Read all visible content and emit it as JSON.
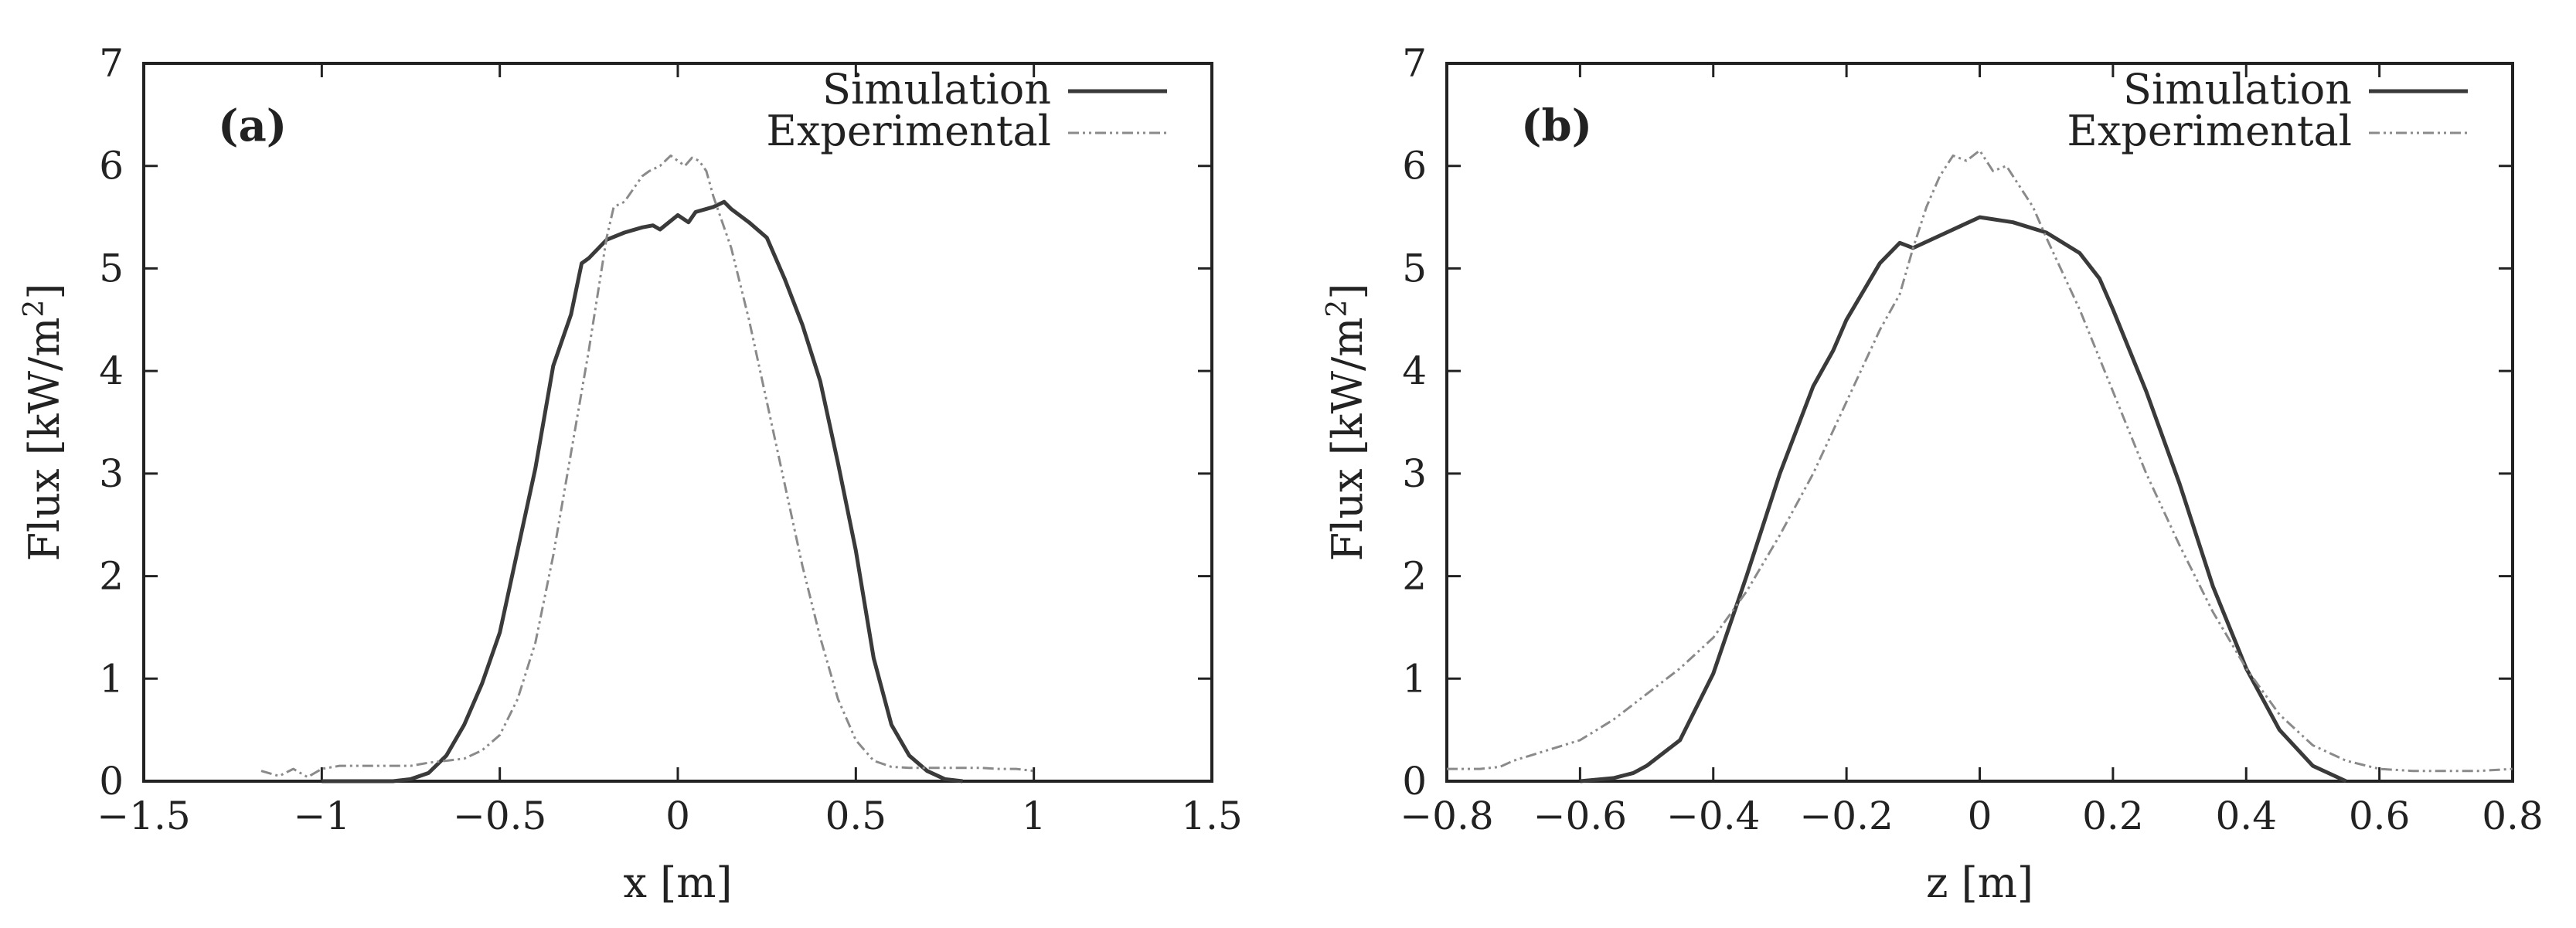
{
  "colors": {
    "simulation": "#3a3a3a",
    "experimental": "#8a8a8a",
    "axis": "#222222"
  },
  "chart_data": [
    {
      "type": "line",
      "panel_label": "(a)",
      "xlabel": "x [m]",
      "ylabel": "Flux [kW/m",
      "ylabel_sup": "2",
      "ylabel_end": "]",
      "xlim": [
        -1.5,
        1.5
      ],
      "ylim": [
        0,
        7
      ],
      "xticks": [
        -1.5,
        -1,
        -0.5,
        0,
        0.5,
        1,
        1.5
      ],
      "xtick_labels": [
        "−1.5",
        "−1",
        "−0.5",
        "0",
        "0.5",
        "1",
        "1.5"
      ],
      "yticks": [
        0,
        1,
        2,
        3,
        4,
        5,
        6,
        7
      ],
      "ytick_labels": [
        "0",
        "1",
        "2",
        "3",
        "4",
        "5",
        "6",
        "7"
      ],
      "legend_position": "top-right",
      "series": [
        {
          "name": "Simulation",
          "style": "solid",
          "x": [
            -1.0,
            -0.8,
            -0.75,
            -0.7,
            -0.65,
            -0.6,
            -0.55,
            -0.5,
            -0.45,
            -0.4,
            -0.35,
            -0.3,
            -0.27,
            -0.25,
            -0.2,
            -0.15,
            -0.1,
            -0.07,
            -0.05,
            0.0,
            0.03,
            0.05,
            0.1,
            0.13,
            0.15,
            0.2,
            0.25,
            0.3,
            0.35,
            0.4,
            0.45,
            0.5,
            0.55,
            0.6,
            0.65,
            0.7,
            0.75,
            0.8
          ],
          "values": [
            0,
            0.0,
            0.02,
            0.08,
            0.25,
            0.55,
            0.95,
            1.45,
            2.25,
            3.05,
            4.05,
            4.55,
            5.05,
            5.1,
            5.28,
            5.35,
            5.4,
            5.42,
            5.38,
            5.52,
            5.45,
            5.55,
            5.6,
            5.65,
            5.58,
            5.45,
            5.3,
            4.9,
            4.45,
            3.9,
            3.1,
            2.25,
            1.2,
            0.55,
            0.25,
            0.1,
            0.02,
            0.0
          ]
        },
        {
          "name": "Experimental",
          "style": "dash-dot",
          "x": [
            -1.17,
            -1.12,
            -1.08,
            -1.04,
            -1.0,
            -0.95,
            -0.9,
            -0.85,
            -0.8,
            -0.75,
            -0.7,
            -0.65,
            -0.6,
            -0.55,
            -0.5,
            -0.45,
            -0.4,
            -0.35,
            -0.3,
            -0.25,
            -0.2,
            -0.18,
            -0.15,
            -0.12,
            -0.1,
            -0.08,
            -0.05,
            -0.02,
            0.0,
            0.02,
            0.04,
            0.06,
            0.08,
            0.1,
            0.15,
            0.2,
            0.25,
            0.3,
            0.35,
            0.4,
            0.45,
            0.5,
            0.55,
            0.6,
            0.65,
            0.7,
            0.75,
            0.8,
            0.85,
            0.9,
            0.95,
            1.0
          ],
          "values": [
            0.1,
            0.05,
            0.12,
            0.04,
            0.12,
            0.15,
            0.15,
            0.15,
            0.15,
            0.15,
            0.18,
            0.2,
            0.22,
            0.3,
            0.45,
            0.8,
            1.35,
            2.2,
            3.2,
            4.2,
            5.3,
            5.6,
            5.65,
            5.8,
            5.9,
            5.95,
            6.0,
            6.1,
            6.05,
            6.0,
            6.08,
            6.05,
            5.95,
            5.7,
            5.2,
            4.5,
            3.7,
            2.9,
            2.1,
            1.4,
            0.8,
            0.4,
            0.2,
            0.14,
            0.13,
            0.13,
            0.13,
            0.13,
            0.13,
            0.12,
            0.12,
            0.1
          ]
        }
      ]
    },
    {
      "type": "line",
      "panel_label": "(b)",
      "xlabel": "z [m]",
      "ylabel": "Flux [kW/m",
      "ylabel_sup": "2",
      "ylabel_end": "]",
      "xlim": [
        -0.8,
        0.8
      ],
      "ylim": [
        0,
        7
      ],
      "xticks": [
        -0.8,
        -0.6,
        -0.4,
        -0.2,
        0,
        0.2,
        0.4,
        0.6,
        0.8
      ],
      "xtick_labels": [
        "−0.8",
        "−0.6",
        "−0.4",
        "−0.2",
        "0",
        "0.2",
        "0.4",
        "0.6",
        "0.8"
      ],
      "yticks": [
        0,
        1,
        2,
        3,
        4,
        5,
        6,
        7
      ],
      "ytick_labels": [
        "0",
        "1",
        "2",
        "3",
        "4",
        "5",
        "6",
        "7"
      ],
      "legend_position": "top-right",
      "series": [
        {
          "name": "Simulation",
          "style": "solid",
          "x": [
            -0.6,
            -0.55,
            -0.52,
            -0.5,
            -0.45,
            -0.4,
            -0.35,
            -0.3,
            -0.25,
            -0.22,
            -0.2,
            -0.15,
            -0.12,
            -0.1,
            -0.05,
            0.0,
            0.05,
            0.1,
            0.15,
            0.18,
            0.2,
            0.25,
            0.3,
            0.35,
            0.4,
            0.45,
            0.5,
            0.55
          ],
          "values": [
            0.0,
            0.03,
            0.08,
            0.15,
            0.4,
            1.05,
            2.0,
            3.0,
            3.85,
            4.2,
            4.5,
            5.05,
            5.25,
            5.2,
            5.35,
            5.5,
            5.45,
            5.35,
            5.15,
            4.9,
            4.6,
            3.8,
            2.9,
            1.9,
            1.1,
            0.5,
            0.15,
            0.0
          ]
        },
        {
          "name": "Experimental",
          "style": "dash-dot",
          "x": [
            -0.8,
            -0.75,
            -0.72,
            -0.7,
            -0.65,
            -0.6,
            -0.55,
            -0.5,
            -0.45,
            -0.4,
            -0.35,
            -0.3,
            -0.25,
            -0.2,
            -0.15,
            -0.12,
            -0.1,
            -0.08,
            -0.06,
            -0.04,
            -0.02,
            0.0,
            0.02,
            0.04,
            0.06,
            0.08,
            0.1,
            0.15,
            0.2,
            0.25,
            0.3,
            0.35,
            0.4,
            0.45,
            0.5,
            0.55,
            0.6,
            0.65,
            0.7,
            0.75,
            0.8
          ],
          "values": [
            0.12,
            0.12,
            0.14,
            0.2,
            0.3,
            0.4,
            0.6,
            0.85,
            1.1,
            1.4,
            1.85,
            2.4,
            3.0,
            3.7,
            4.4,
            4.75,
            5.2,
            5.6,
            5.9,
            6.1,
            6.05,
            6.15,
            5.95,
            6.0,
            5.8,
            5.6,
            5.3,
            4.6,
            3.8,
            3.0,
            2.3,
            1.65,
            1.1,
            0.65,
            0.35,
            0.2,
            0.12,
            0.1,
            0.1,
            0.1,
            0.12
          ]
        }
      ]
    }
  ]
}
